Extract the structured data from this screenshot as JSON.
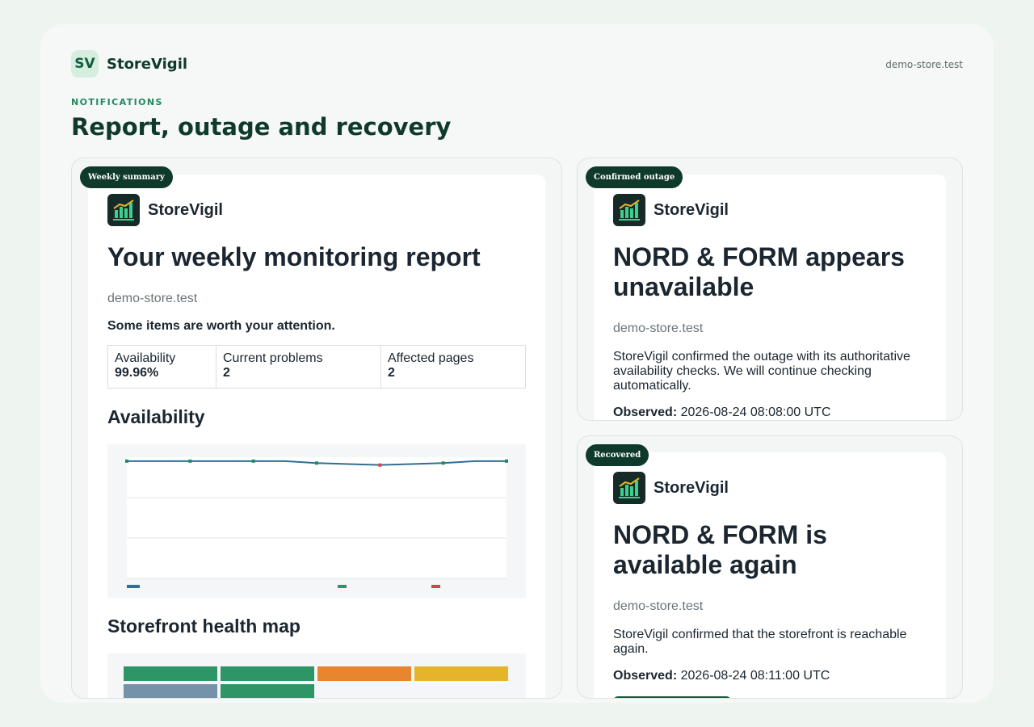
{
  "header": {
    "brand_mark": "SV",
    "brand_name": "StoreVigil",
    "domain": "demo-store.test"
  },
  "page": {
    "eyebrow": "NOTIFICATIONS",
    "title": "Report, outage and recovery"
  },
  "weekly": {
    "tag": "Weekly summary",
    "app_name": "StoreVigil",
    "title": "Your weekly monitoring report",
    "store": "demo-store.test",
    "lead": "Some items are worth your attention.",
    "stats": [
      {
        "label": "Availability",
        "value": "99.96%"
      },
      {
        "label": "Current problems",
        "value": "2"
      },
      {
        "label": "Affected pages",
        "value": "2"
      }
    ],
    "availability_heading": "Availability",
    "map_heading": "Storefront health map"
  },
  "outage": {
    "tag": "Confirmed outage",
    "app_name": "StoreVigil",
    "title": "NORD & FORM appears unavailable",
    "store": "demo-store.test",
    "body": "StoreVigil confirmed the outage with its authoritative availability checks. We will continue checking automatically.",
    "observed_label": "Observed:",
    "observed_value": "2026-08-24 08:08:00 UTC"
  },
  "recovery": {
    "tag": "Recovered",
    "app_name": "StoreVigil",
    "title": "NORD & FORM is available again",
    "store": "demo-store.test",
    "body": "StoreVigil confirmed that the storefront is reachable again.",
    "observed_label": "Observed:",
    "observed_value": "2026-08-24 08:11:00 UTC"
  },
  "chart_data": {
    "type": "line",
    "title": "",
    "xlabel": "",
    "ylabel": "",
    "x": [
      0,
      1,
      2,
      3,
      4,
      5,
      6,
      7,
      8,
      9,
      10,
      11,
      12
    ],
    "series": [
      {
        "values": [
          100,
          100,
          100,
          100,
          100,
          100,
          99.9,
          99.85,
          99.8,
          99.85,
          99.9,
          100,
          100
        ]
      }
    ],
    "markers": [
      {
        "x": 0,
        "color": "#1f8a5b"
      },
      {
        "x": 2,
        "color": "#1f8a5b"
      },
      {
        "x": 4,
        "color": "#1f8a5b"
      },
      {
        "x": 6,
        "color": "#1f8a5b"
      },
      {
        "x": 8,
        "color": "#d64545"
      },
      {
        "x": 10,
        "color": "#1f8a5b"
      },
      {
        "x": 12,
        "color": "#1f8a5b"
      }
    ],
    "ylim": [
      94,
      100.2
    ],
    "grid": true,
    "legend_colors": [
      "#2f6f95",
      "#2e9566",
      "#d64545"
    ],
    "line_color": "#2f6f95"
  },
  "health_map": {
    "tiles": [
      {
        "color": "#2e9566"
      },
      {
        "color": "#2e9566"
      },
      {
        "color": "#e8862f"
      },
      {
        "color": "#e5b42a"
      },
      {
        "color": "#7493a8"
      },
      {
        "color": "#2e9566"
      }
    ]
  },
  "colors": {
    "brand_dark": "#0f3a2b",
    "accent": "#1f8a5b"
  }
}
